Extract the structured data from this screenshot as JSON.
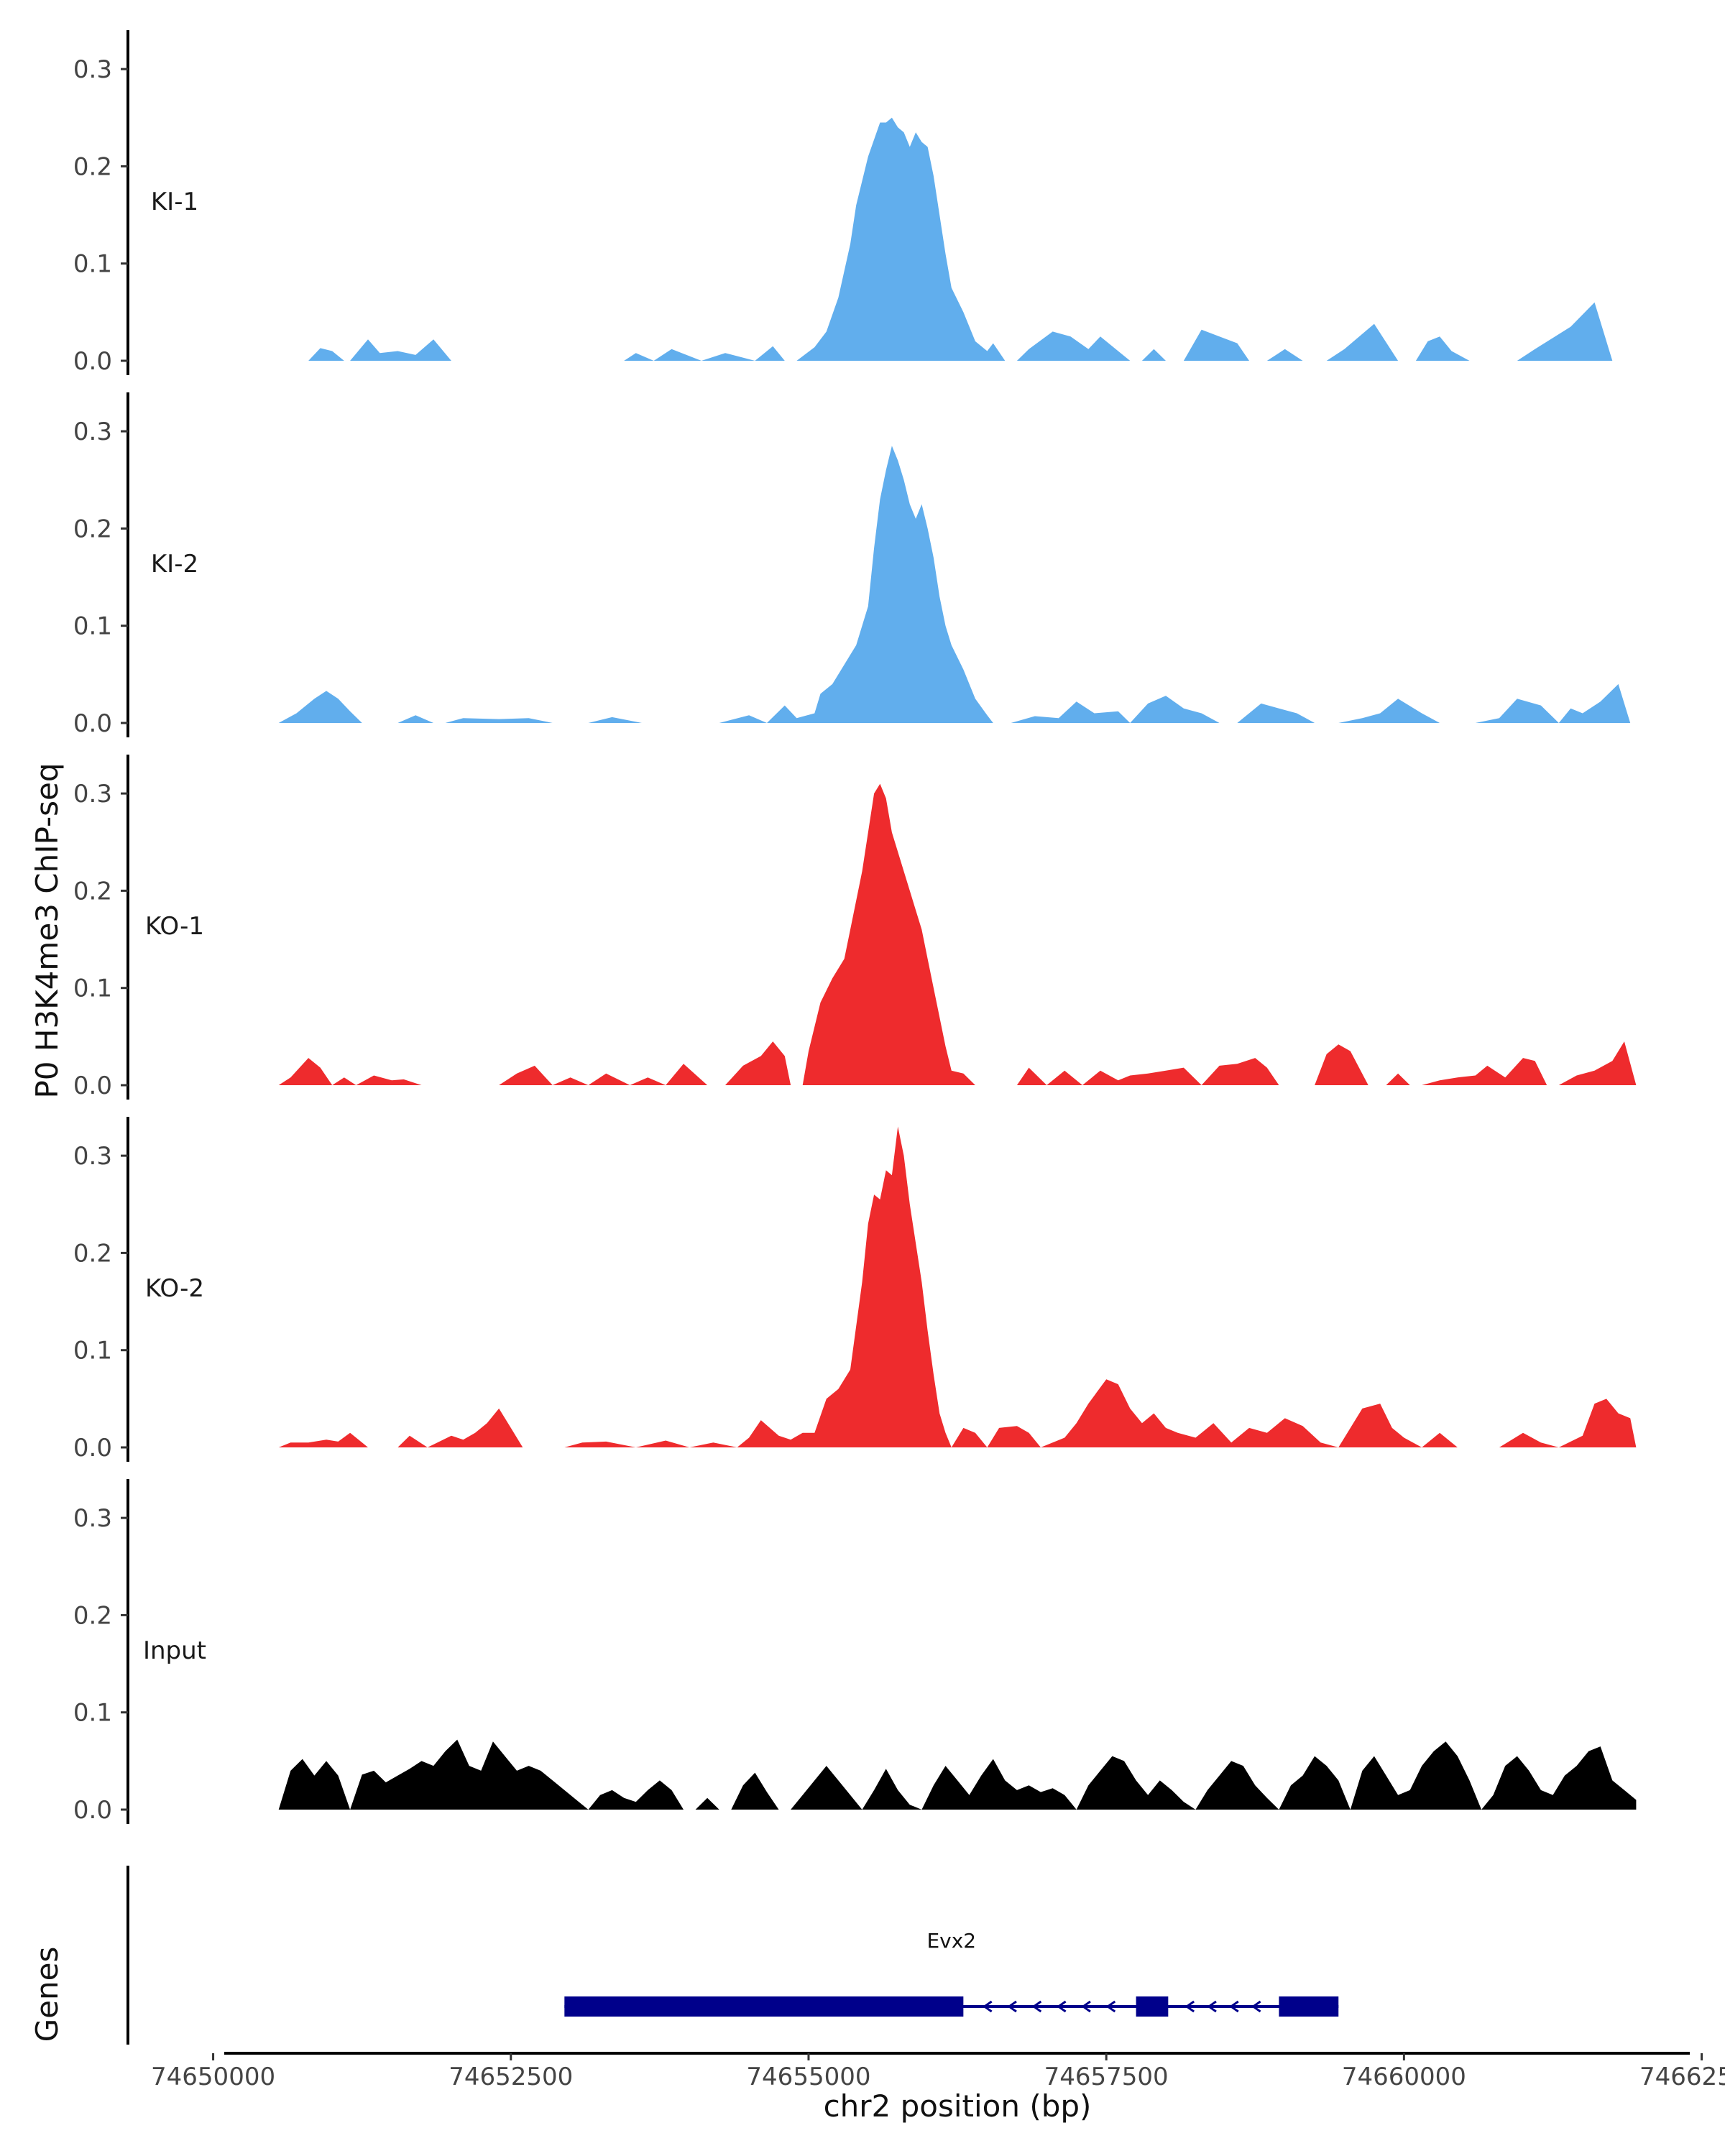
{
  "chart_data": {
    "type": "area",
    "title": "",
    "ylabel": "P0 H3K4me3 ChIP-seq",
    "xlabel": "chr2 position (bp)",
    "ylim": [
      0,
      0.34
    ],
    "yticks": [
      0.0,
      0.1,
      0.2,
      0.3
    ],
    "ytick_labels": [
      "0.0",
      "0.1",
      "0.2",
      "0.3"
    ],
    "xlim": [
      74649900,
      74662400
    ],
    "xticks": [
      74650000,
      74652500,
      74655000,
      74657500,
      74660000,
      74662500
    ],
    "xtick_labels": [
      "74650000",
      "74652500",
      "74655000",
      "74657500",
      "74660000",
      "74662500"
    ],
    "genes_track_label": "Genes",
    "colors": {
      "KI": "#61aeed",
      "KO": "#ee2b2d",
      "Input": "#000000",
      "gene": "#00008b"
    },
    "series": [
      {
        "name": "KI-1",
        "color": "#61aeed",
        "x": [
          74650800,
          74650900,
          74651000,
          74651100,
          74651150,
          74651300,
          74651400,
          74651550,
          74651700,
          74651850,
          74652000,
          74652100,
          74653450,
          74653550,
          74653700,
          74653850,
          74654100,
          74654300,
          74654550,
          74654700,
          74654800,
          74654900,
          74655050,
          74655150,
          74655250,
          74655350,
          74655400,
          74655500,
          74655600,
          74655650,
          74655700,
          74655750,
          74655800,
          74655850,
          74655900,
          74655950,
          74656000,
          74656050,
          74656100,
          74656150,
          74656200,
          74656300,
          74656400,
          74656500,
          74656550,
          74656650,
          74656750,
          74656850,
          74657050,
          74657200,
          74657350,
          74657450,
          74657600,
          74657700,
          74657800,
          74657900,
          74658000,
          74658150,
          74658300,
          74658450,
          74658600,
          74658700,
          74658850,
          74659000,
          74659150,
          74659350,
          74659500,
          74659750,
          74659950,
          74660100,
          74660200,
          74660300,
          74660400,
          74660550,
          74660800,
          74660950,
          74661100,
          74661400,
          74661600,
          74661750,
          74661850,
          74661950
        ],
        "y": [
          0.0,
          0.013,
          0.01,
          0.0,
          0.0,
          0.022,
          0.008,
          0.01,
          0.006,
          0.022,
          0.0,
          0.0,
          0.0,
          0.008,
          0.0,
          0.012,
          0.0,
          0.008,
          0.0,
          0.015,
          0.0,
          0.0,
          0.014,
          0.03,
          0.065,
          0.12,
          0.16,
          0.21,
          0.245,
          0.245,
          0.25,
          0.24,
          0.235,
          0.22,
          0.235,
          0.225,
          0.22,
          0.19,
          0.15,
          0.11,
          0.075,
          0.05,
          0.02,
          0.01,
          0.018,
          0.0,
          0.0,
          0.012,
          0.03,
          0.025,
          0.012,
          0.025,
          0.01,
          0.0,
          0.0,
          0.012,
          0.0,
          0.0,
          0.032,
          0.025,
          0.018,
          0.0,
          0.0,
          0.012,
          0.0,
          0.0,
          0.012,
          0.038,
          0.0,
          0.0,
          0.02,
          0.025,
          0.01,
          0.0,
          0.0,
          0.0,
          0.012,
          0.035,
          0.06,
          0.0,
          0.0,
          0.0
        ],
        "label": "KI-1"
      },
      {
        "name": "KI-2",
        "color": "#61aeed",
        "x": [
          74650550,
          74650700,
          74650850,
          74650950,
          74651050,
          74651150,
          74651250,
          74651400,
          74651550,
          74651700,
          74651850,
          74651950,
          74652100,
          74652400,
          74652650,
          74652850,
          74653150,
          74653350,
          74653600,
          74653800,
          74654250,
          74654500,
          74654650,
          74654800,
          74654900,
          74655050,
          74655100,
          74655200,
          74655300,
          74655400,
          74655500,
          74655550,
          74655600,
          74655650,
          74655700,
          74655750,
          74655800,
          74655850,
          74655900,
          74655950,
          74656000,
          74656050,
          74656100,
          74656150,
          74656200,
          74656300,
          74656400,
          74656500,
          74656550,
          74656700,
          74656900,
          74657100,
          74657250,
          74657400,
          74657600,
          74657700,
          74657850,
          74658000,
          74658150,
          74658300,
          74658450,
          74658600,
          74658800,
          74658950,
          74659100,
          74659250,
          74659450,
          74659650,
          74659800,
          74659950,
          74660150,
          74660300,
          74660600,
          74660800,
          74660950,
          74661150,
          74661300,
          74661400,
          74661500,
          74661650,
          74661800,
          74661900
        ],
        "y": [
          0.0,
          0.01,
          0.025,
          0.033,
          0.025,
          0.012,
          0.0,
          0.0,
          0.0,
          0.008,
          0.0,
          0.0,
          0.005,
          0.004,
          0.005,
          0.0,
          0.0,
          0.006,
          0.0,
          0.0,
          0.0,
          0.008,
          0.0,
          0.018,
          0.005,
          0.01,
          0.03,
          0.04,
          0.06,
          0.08,
          0.12,
          0.18,
          0.23,
          0.26,
          0.285,
          0.27,
          0.25,
          0.225,
          0.21,
          0.225,
          0.2,
          0.17,
          0.13,
          0.1,
          0.08,
          0.055,
          0.025,
          0.008,
          0.0,
          0.0,
          0.007,
          0.005,
          0.022,
          0.01,
          0.012,
          0.0,
          0.02,
          0.028,
          0.015,
          0.01,
          0.0,
          0.0,
          0.02,
          0.015,
          0.01,
          0.0,
          0.0,
          0.005,
          0.01,
          0.025,
          0.01,
          0.0,
          0.0,
          0.005,
          0.025,
          0.018,
          0.0,
          0.015,
          0.01,
          0.022,
          0.04,
          0.0
        ],
        "label": "KI-2"
      },
      {
        "name": "KO-1",
        "color": "#ee2b2d",
        "x": [
          74650550,
          74650650,
          74650800,
          74650900,
          74651000,
          74651100,
          74651200,
          74651350,
          74651500,
          74651600,
          74651750,
          74651850,
          74652050,
          74652400,
          74652550,
          74652700,
          74652850,
          74653000,
          74653150,
          74653300,
          74653500,
          74653650,
          74653800,
          74653950,
          74654150,
          74654300,
          74654450,
          74654600,
          74654700,
          74654800,
          74654850,
          74654950,
          74655000,
          74655100,
          74655200,
          74655300,
          74655350,
          74655450,
          74655550,
          74655600,
          74655650,
          74655700,
          74655750,
          74655800,
          74655850,
          74655900,
          74655950,
          74656000,
          74656050,
          74656100,
          74656150,
          74656200,
          74656300,
          74656400,
          74656550,
          74656650,
          74656750,
          74656850,
          74657000,
          74657150,
          74657300,
          74657450,
          74657600,
          74657700,
          74657850,
          74658000,
          74658150,
          74658300,
          74658450,
          74658600,
          74658750,
          74658850,
          74658950,
          74659100,
          74659250,
          74659350,
          74659450,
          74659550,
          74659700,
          74659850,
          74659950,
          74660050,
          74660150,
          74660300,
          74660450,
          74660600,
          74660700,
          74660850,
          74661000,
          74661100,
          74661200,
          74661300,
          74661450,
          74661600,
          74661750,
          74661850,
          74661950
        ],
        "y": [
          0.0,
          0.008,
          0.028,
          0.018,
          0.0,
          0.008,
          0.0,
          0.01,
          0.005,
          0.006,
          0.0,
          0.0,
          0.0,
          0.0,
          0.012,
          0.02,
          0.0,
          0.008,
          0.0,
          0.012,
          0.0,
          0.008,
          0.0,
          0.022,
          0.0,
          0.0,
          0.02,
          0.03,
          0.045,
          0.03,
          0.0,
          0.0,
          0.035,
          0.085,
          0.11,
          0.13,
          0.16,
          0.22,
          0.3,
          0.31,
          0.295,
          0.26,
          0.24,
          0.22,
          0.2,
          0.18,
          0.16,
          0.13,
          0.1,
          0.07,
          0.04,
          0.015,
          0.012,
          0.0,
          0.0,
          0.0,
          0.0,
          0.018,
          0.0,
          0.015,
          0.0,
          0.015,
          0.005,
          0.01,
          0.012,
          0.015,
          0.018,
          0.0,
          0.02,
          0.022,
          0.028,
          0.018,
          0.0,
          0.0,
          0.0,
          0.032,
          0.042,
          0.035,
          0.0,
          0.0,
          0.012,
          0.0,
          0.0,
          0.005,
          0.008,
          0.01,
          0.02,
          0.008,
          0.028,
          0.025,
          0.0,
          0.0,
          0.01,
          0.015,
          0.025,
          0.045,
          0.0
        ],
        "label": "KO-1"
      },
      {
        "name": "KO-2",
        "color": "#ee2b2d",
        "x": [
          74650550,
          74650650,
          74650800,
          74650950,
          74651050,
          74651150,
          74651300,
          74651450,
          74651550,
          74651650,
          74651800,
          74651900,
          74652000,
          74652100,
          74652200,
          74652300,
          74652400,
          74652500,
          74652600,
          74652950,
          74653100,
          74653300,
          74653550,
          74653800,
          74654000,
          74654200,
          74654400,
          74654500,
          74654600,
          74654750,
          74654850,
          74654950,
          74655050,
          74655150,
          74655250,
          74655350,
          74655450,
          74655500,
          74655550,
          74655600,
          74655650,
          74655700,
          74655750,
          74655800,
          74655850,
          74655900,
          74655950,
          74656000,
          74656050,
          74656100,
          74656150,
          74656200,
          74656300,
          74656400,
          74656500,
          74656600,
          74656750,
          74656850,
          74656950,
          74657050,
          74657150,
          74657250,
          74657350,
          74657500,
          74657600,
          74657700,
          74657800,
          74657900,
          74658000,
          74658100,
          74658250,
          74658400,
          74658550,
          74658700,
          74658850,
          74659000,
          74659150,
          74659300,
          74659450,
          74659650,
          74659800,
          74659900,
          74660000,
          74660150,
          74660300,
          74660450,
          74660600,
          74660800,
          74661000,
          74661150,
          74661300,
          74661500,
          74661600,
          74661700,
          74661800,
          74661900,
          74661950
        ],
        "y": [
          0.0,
          0.005,
          0.005,
          0.008,
          0.006,
          0.015,
          0.0,
          0.0,
          0.0,
          0.012,
          0.0,
          0.006,
          0.012,
          0.008,
          0.015,
          0.025,
          0.04,
          0.02,
          0.0,
          0.0,
          0.005,
          0.006,
          0.0,
          0.007,
          0.0,
          0.005,
          0.0,
          0.01,
          0.028,
          0.012,
          0.008,
          0.015,
          0.015,
          0.05,
          0.06,
          0.08,
          0.17,
          0.23,
          0.26,
          0.255,
          0.285,
          0.28,
          0.33,
          0.3,
          0.25,
          0.21,
          0.17,
          0.12,
          0.075,
          0.035,
          0.015,
          0.0,
          0.02,
          0.015,
          0.0,
          0.02,
          0.022,
          0.015,
          0.0,
          0.005,
          0.01,
          0.025,
          0.045,
          0.07,
          0.065,
          0.04,
          0.025,
          0.035,
          0.02,
          0.015,
          0.01,
          0.025,
          0.005,
          0.02,
          0.015,
          0.03,
          0.022,
          0.005,
          0.0,
          0.04,
          0.045,
          0.02,
          0.01,
          0.0,
          0.015,
          0.0,
          0.0,
          0.0,
          0.015,
          0.005,
          0.0,
          0.012,
          0.045,
          0.05,
          0.035,
          0.03,
          0.0
        ],
        "label": "KO-2"
      },
      {
        "name": "Input",
        "color": "#000000",
        "x": [
          74650550,
          74650650,
          74650750,
          74650850,
          74650950,
          74651050,
          74651150,
          74651250,
          74651350,
          74651450,
          74651550,
          74651650,
          74651750,
          74651850,
          74651950,
          74652050,
          74652150,
          74652250,
          74652350,
          74652450,
          74652550,
          74652650,
          74652750,
          74652850,
          74652950,
          74653050,
          74653150,
          74653250,
          74653350,
          74653450,
          74653550,
          74653650,
          74653750,
          74653850,
          74653950,
          74654050,
          74654150,
          74654250,
          74654350,
          74654450,
          74654550,
          74654650,
          74654750,
          74654850,
          74654950,
          74655050,
          74655150,
          74655250,
          74655350,
          74655450,
          74655550,
          74655650,
          74655750,
          74655850,
          74655950,
          74656050,
          74656150,
          74656250,
          74656350,
          74656450,
          74656550,
          74656650,
          74656750,
          74656850,
          74656950,
          74657050,
          74657150,
          74657250,
          74657350,
          74657450,
          74657550,
          74657650,
          74657750,
          74657850,
          74657950,
          74658050,
          74658150,
          74658250,
          74658350,
          74658450,
          74658550,
          74658650,
          74658750,
          74658850,
          74658950,
          74659050,
          74659150,
          74659250,
          74659350,
          74659450,
          74659550,
          74659650,
          74659750,
          74659850,
          74659950,
          74660050,
          74660150,
          74660250,
          74660350,
          74660450,
          74660550,
          74660650,
          74660750,
          74660850,
          74660950,
          74661050,
          74661150,
          74661250,
          74661350,
          74661450,
          74661550,
          74661650,
          74661750,
          74661850,
          74661950
        ],
        "y": [
          0.0,
          0.04,
          0.052,
          0.035,
          0.05,
          0.035,
          0.0,
          0.036,
          0.04,
          0.028,
          0.035,
          0.042,
          0.05,
          0.045,
          0.06,
          0.072,
          0.045,
          0.04,
          0.07,
          0.055,
          0.04,
          0.045,
          0.04,
          0.03,
          0.02,
          0.01,
          0.0,
          0.015,
          0.02,
          0.012,
          0.008,
          0.02,
          0.03,
          0.02,
          0.0,
          0.0,
          0.012,
          0.0,
          0.0,
          0.025,
          0.038,
          0.018,
          0.0,
          0.0,
          0.015,
          0.03,
          0.045,
          0.03,
          0.015,
          0.0,
          0.02,
          0.042,
          0.02,
          0.005,
          0.0,
          0.025,
          0.045,
          0.03,
          0.015,
          0.035,
          0.052,
          0.03,
          0.02,
          0.025,
          0.018,
          0.022,
          0.015,
          0.0,
          0.025,
          0.04,
          0.055,
          0.05,
          0.03,
          0.015,
          0.03,
          0.02,
          0.008,
          0.0,
          0.02,
          0.035,
          0.05,
          0.045,
          0.025,
          0.012,
          0.0,
          0.025,
          0.035,
          0.055,
          0.045,
          0.03,
          0.0,
          0.04,
          0.055,
          0.035,
          0.015,
          0.02,
          0.045,
          0.06,
          0.07,
          0.055,
          0.03,
          0.0,
          0.015,
          0.045,
          0.055,
          0.04,
          0.02,
          0.015,
          0.035,
          0.045,
          0.06,
          0.065,
          0.03,
          0.02,
          0.01
        ],
        "label": "Input"
      }
    ],
    "gene": {
      "name": "Evx2",
      "strand": "-",
      "start": 74652950,
      "end": 74659450,
      "exons": [
        [
          74652950,
          74656300
        ],
        [
          74657750,
          74658020
        ],
        [
          74658950,
          74659450
        ]
      ]
    }
  }
}
